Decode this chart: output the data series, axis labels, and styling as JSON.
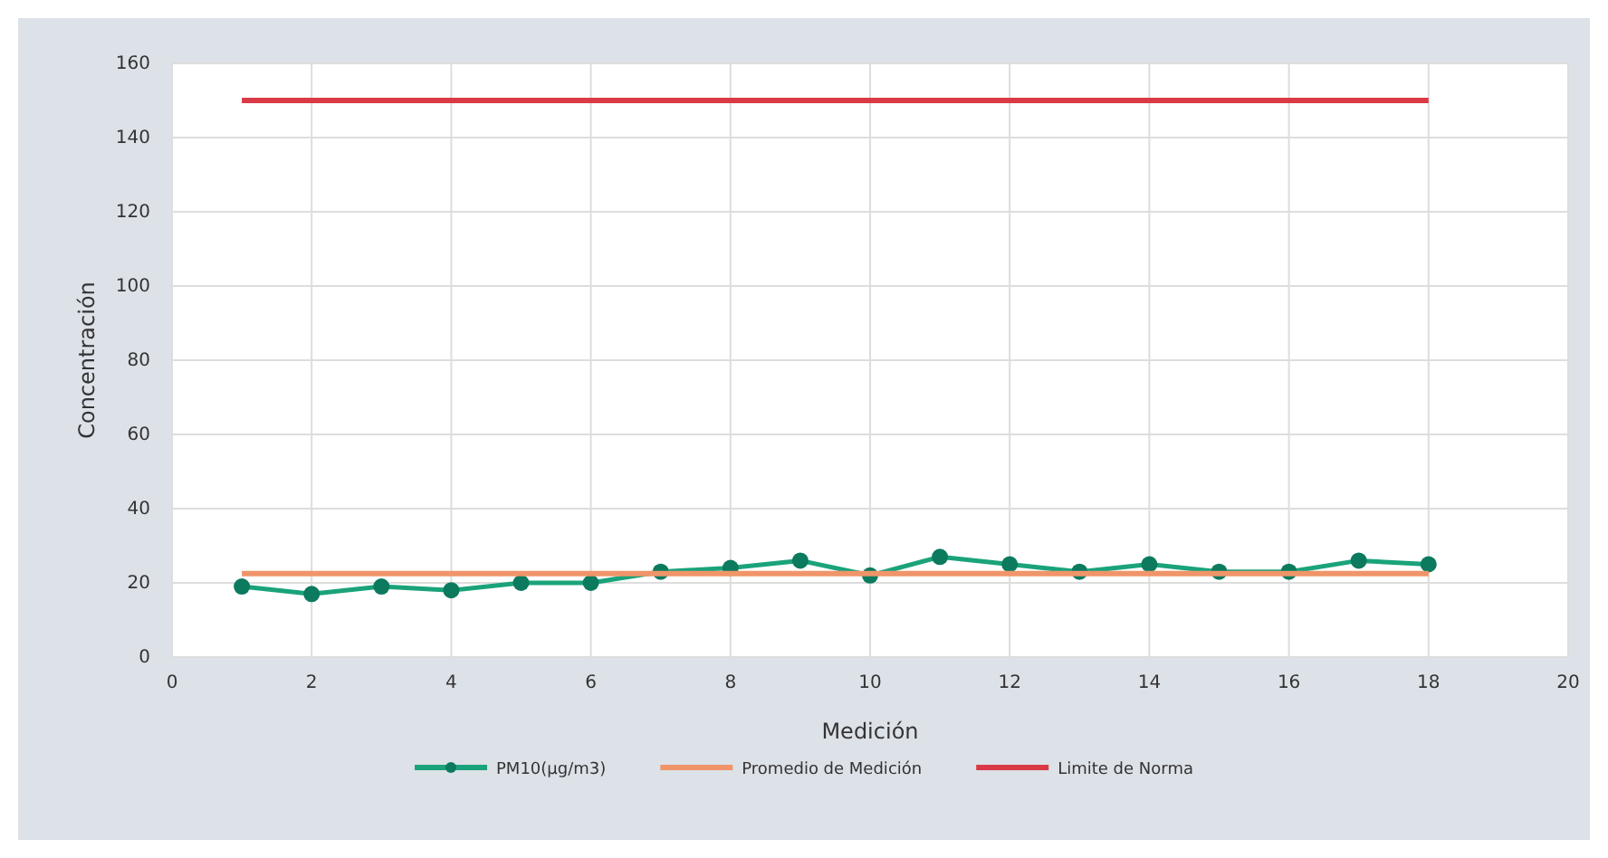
{
  "chart_data": {
    "type": "line",
    "xlabel": "Medición",
    "ylabel": "Concentración",
    "xlim": [
      0,
      20
    ],
    "xticks": [
      0,
      2,
      4,
      6,
      8,
      10,
      12,
      14,
      16,
      18,
      20
    ],
    "ylim": [
      0,
      160
    ],
    "yticks": [
      0,
      20,
      40,
      60,
      80,
      100,
      120,
      140,
      160
    ],
    "grid": true,
    "legend": "bottom",
    "series": [
      {
        "name": "PM10(µg/m3)",
        "color": "#1aa37a",
        "marker": "circle",
        "x": [
          1,
          2,
          3,
          4,
          5,
          6,
          7,
          8,
          9,
          10,
          11,
          12,
          13,
          14,
          15,
          16,
          17,
          18
        ],
        "values": [
          19,
          17,
          19,
          18,
          20,
          20,
          23,
          24,
          26,
          22,
          27,
          25,
          23,
          25,
          23,
          23,
          26,
          25
        ]
      },
      {
        "name": "Promedio de Medición",
        "color": "#f0956a",
        "marker": "none",
        "x": [
          1,
          18
        ],
        "values": [
          22.5,
          22.5
        ]
      },
      {
        "name": "Limite de Norma",
        "color": "#d93a45",
        "marker": "none",
        "x": [
          1,
          18
        ],
        "values": [
          150,
          150
        ]
      }
    ]
  }
}
